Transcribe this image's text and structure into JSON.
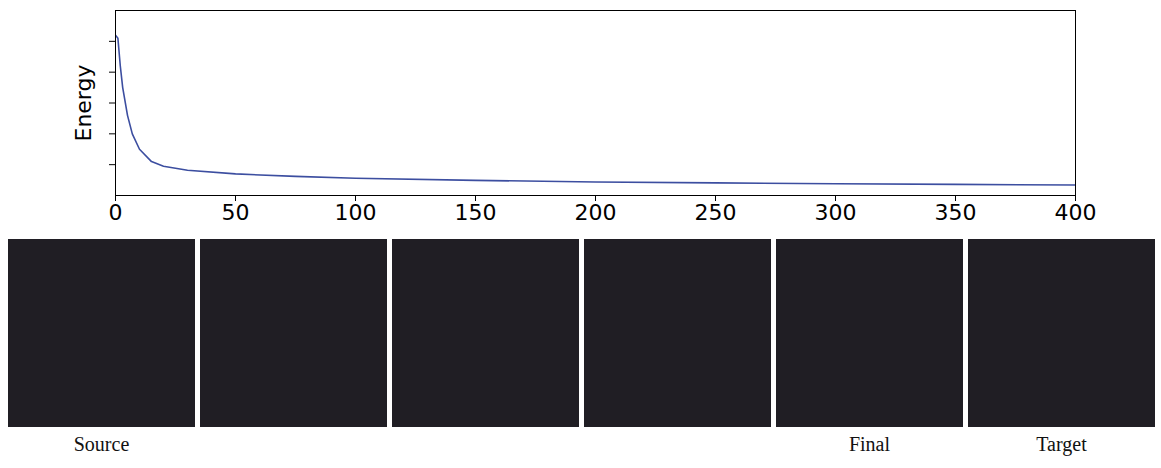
{
  "chart_data": {
    "type": "line",
    "y_label": "Energy",
    "x": [
      0,
      1,
      2,
      3,
      5,
      7,
      10,
      15,
      20,
      30,
      50,
      75,
      100,
      150,
      200,
      250,
      300,
      350,
      400
    ],
    "values": [
      5.2,
      5.1,
      4.2,
      3.5,
      2.6,
      2.0,
      1.5,
      1.1,
      0.95,
      0.82,
      0.7,
      0.62,
      0.56,
      0.49,
      0.44,
      0.41,
      0.38,
      0.36,
      0.34
    ],
    "color": "#3c4ea0",
    "xlim": [
      0,
      400
    ],
    "xticks": [
      0,
      50,
      100,
      150,
      200,
      250,
      300,
      350,
      400
    ],
    "ylim": [
      0,
      6
    ],
    "yticks": [
      1,
      2,
      3,
      4,
      5
    ],
    "tick_labels": "x"
  },
  "images": {
    "captions": [
      "Source",
      null,
      null,
      null,
      "Final",
      "Target"
    ]
  }
}
